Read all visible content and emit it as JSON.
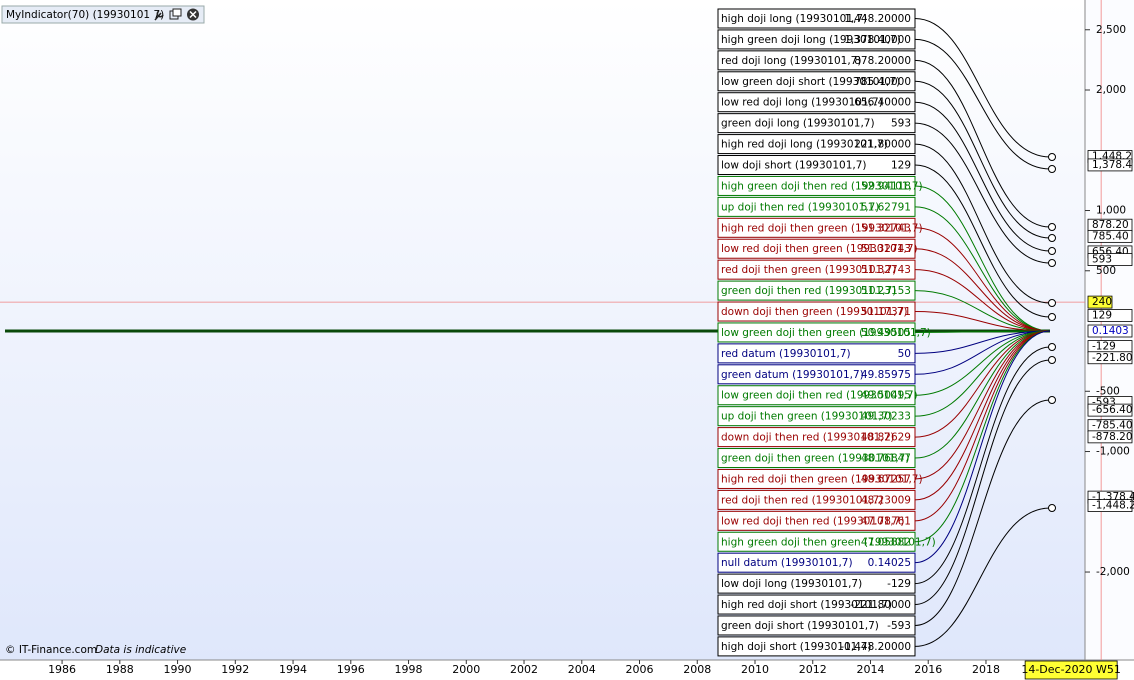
{
  "header": {
    "title": "MyIndicator(70) (19930101 7)"
  },
  "legend": {
    "items": [
      {
        "label": "high doji long (19930101,7)",
        "value": "1,448.20000",
        "color": "#000000"
      },
      {
        "label": "high green doji long (19930101,7)",
        "value": "1,378.40000",
        "color": "#000000"
      },
      {
        "label": "red doji long (19930101,7)",
        "value": "878.20000",
        "color": "#000000"
      },
      {
        "label": "low green doji short (19930101,7)",
        "value": "785.40000",
        "color": "#000000"
      },
      {
        "label": "low red doji long (19930101,7)",
        "value": "656.40000",
        "color": "#000000"
      },
      {
        "label": "green doji long (19930101,7)",
        "value": "593",
        "color": "#000000"
      },
      {
        "label": "high red doji long (19930101,7)",
        "value": "221.80000",
        "color": "#000000"
      },
      {
        "label": "low doji short (19930101,7)",
        "value": "129",
        "color": "#000000"
      },
      {
        "label": "high green doji then red (19930101,7)",
        "value": "52.94118",
        "color": "#007a00"
      },
      {
        "label": "up doji then red (19930101,7)",
        "value": "51.62791",
        "color": "#007a00"
      },
      {
        "label": "high red doji then green (19930101,7)",
        "value": "51.32743",
        "color": "#990000"
      },
      {
        "label": "low red doji then green (19930101,7)",
        "value": "51.32743",
        "color": "#990000"
      },
      {
        "label": "red doji then green (19930101,7)",
        "value": "51.32743",
        "color": "#990000"
      },
      {
        "label": "green doji then red (19930101,7)",
        "value": "51.23153",
        "color": "#007a00"
      },
      {
        "label": "down doji then green (19930101,7)",
        "value": "51.17371",
        "color": "#990000"
      },
      {
        "label": "low green doji then green (19930101,7)",
        "value": "50.49505",
        "color": "#007a00"
      },
      {
        "label": "red datum (19930101,7)",
        "value": "50",
        "color": "#000080"
      },
      {
        "label": "green datum (19930101,7)",
        "value": "49.85975",
        "color": "#000080"
      },
      {
        "label": "low green doji then red (19930101,7)",
        "value": "49.50495",
        "color": "#007a00"
      },
      {
        "label": "up doji then green (19930101,7)",
        "value": "49.30233",
        "color": "#007a00"
      },
      {
        "label": "down doji then red (19930101,7)",
        "value": "48.82629",
        "color": "#990000"
      },
      {
        "label": "green doji then green (19930101,7)",
        "value": "48.76847",
        "color": "#007a00"
      },
      {
        "label": "high red doji then green (19930101,7)",
        "value": "48.67257",
        "color": "#990000"
      },
      {
        "label": "red doji then red (19930101,7)",
        "value": "48.23009",
        "color": "#990000"
      },
      {
        "label": "low red doji then red (19930101,7)",
        "value": "47.78761",
        "color": "#990000"
      },
      {
        "label": "high green doji then green (19930101,7)",
        "value": "47.05882",
        "color": "#007a00"
      },
      {
        "label": "null datum (19930101,7)",
        "value": "0.14025",
        "color": "#000080"
      },
      {
        "label": "low doji long (19930101,7)",
        "value": "-129",
        "color": "#000000"
      },
      {
        "label": "high red doji short (19930101,7)",
        "value": "-221.80000",
        "color": "#000000"
      },
      {
        "label": "green doji short (19930101,7)",
        "value": "-593",
        "color": "#000000"
      },
      {
        "label": "high doji short (19930101,7)",
        "value": "-1,448.20000",
        "color": "#000000"
      }
    ]
  },
  "price_axis": {
    "ylim": [
      -2730,
      2664
    ],
    "ticks": [
      {
        "value": 2500,
        "label": "2,500"
      },
      {
        "value": 2000,
        "label": "2,000"
      },
      {
        "value": 1000,
        "label": "1,000"
      },
      500,
      -500,
      {
        "value": -1000,
        "label": "-1,000"
      },
      {
        "value": -2000,
        "label": "-2,000"
      }
    ],
    "tags": [
      {
        "value": 1448.2,
        "label": "1,448.2"
      },
      {
        "value": 1378.4,
        "label": "1,378.4"
      },
      {
        "value": 878.2,
        "label": "878.20"
      },
      {
        "value": 785.4,
        "label": "785.40"
      },
      {
        "value": 656.4,
        "label": "656.40"
      },
      593,
      129,
      {
        "value": -129,
        "label": "-129"
      },
      {
        "value": -221.8,
        "label": "-221.80"
      },
      {
        "value": -593,
        "label": "-593"
      },
      {
        "value": -656.4,
        "label": "-656.40"
      },
      {
        "value": -785.4,
        "label": "-785.40"
      },
      {
        "value": -878.2,
        "label": "-878.20"
      },
      {
        "value": -1378.4,
        "label": "-1,378.4"
      },
      {
        "value": -1448.2,
        "label": "-1,448.2"
      }
    ],
    "blue_tag": 0.1403,
    "cursor": 240
  },
  "time_axis": {
    "xlim": [
      1983.85,
      2021.43
    ],
    "ticks": [
      1986,
      1988,
      1990,
      1992,
      1994,
      1996,
      1998,
      2000,
      2002,
      2004,
      2006,
      2008,
      2010,
      2012,
      2014,
      2016,
      2018
    ],
    "cursor": {
      "value": 2020.95,
      "label": "14-Dec-2020 W51"
    }
  },
  "footer": {
    "copyright": "© IT-Finance.com",
    "note": "Data is indicative"
  }
}
